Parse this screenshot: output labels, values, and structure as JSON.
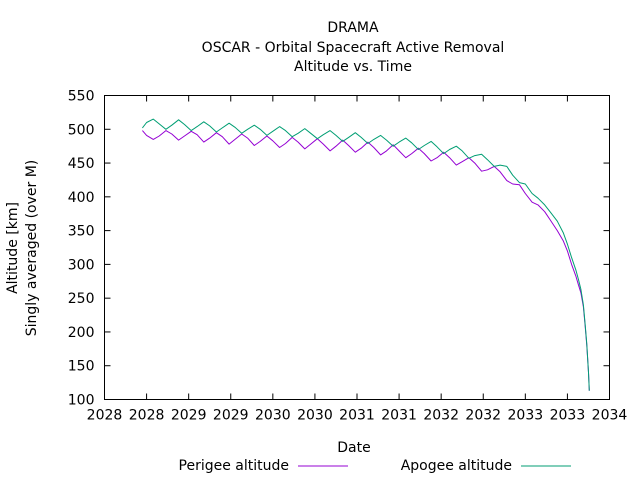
{
  "chart_data": {
    "type": "line",
    "title": "DRAMA",
    "subtitle_lines": [
      "OSCAR - Orbital Spacecraft Active Removal",
      "Altitude vs. Time"
    ],
    "xlabel": "Date",
    "ylabel_lines": [
      "Altitude [km]",
      "Singly averaged (over M)"
    ],
    "xlim": [
      2028.0,
      2034.0
    ],
    "ylim": [
      100,
      550
    ],
    "x_ticks": [
      {
        "v": 2028.0,
        "label": "2028"
      },
      {
        "v": 2028.5,
        "label": "2028"
      },
      {
        "v": 2029.0,
        "label": "2029"
      },
      {
        "v": 2029.5,
        "label": "2029"
      },
      {
        "v": 2030.0,
        "label": "2030"
      },
      {
        "v": 2030.5,
        "label": "2030"
      },
      {
        "v": 2031.0,
        "label": "2031"
      },
      {
        "v": 2031.5,
        "label": "2031"
      },
      {
        "v": 2032.0,
        "label": "2032"
      },
      {
        "v": 2032.5,
        "label": "2032"
      },
      {
        "v": 2033.0,
        "label": "2033"
      },
      {
        "v": 2033.5,
        "label": "2033"
      },
      {
        "v": 2034.0,
        "label": "2034"
      }
    ],
    "y_ticks": [
      {
        "v": 550,
        "label": "550"
      },
      {
        "v": 500,
        "label": "500"
      },
      {
        "v": 450,
        "label": "450"
      },
      {
        "v": 400,
        "label": "400"
      },
      {
        "v": 350,
        "label": "350"
      },
      {
        "v": 300,
        "label": "300"
      },
      {
        "v": 250,
        "label": "250"
      },
      {
        "v": 200,
        "label": "200"
      },
      {
        "v": 150,
        "label": "150"
      },
      {
        "v": 100,
        "label": "100"
      }
    ],
    "grid": false,
    "legend_position": "bottom",
    "series": [
      {
        "name": "Perigee altitude",
        "color": "#9400d3",
        "x": [
          2028.45,
          2028.5,
          2028.58,
          2028.65,
          2028.73,
          2028.8,
          2028.88,
          2028.95,
          2029.03,
          2029.1,
          2029.18,
          2029.25,
          2029.33,
          2029.4,
          2029.48,
          2029.55,
          2029.63,
          2029.7,
          2029.78,
          2029.85,
          2029.93,
          2030.0,
          2030.08,
          2030.15,
          2030.23,
          2030.3,
          2030.38,
          2030.45,
          2030.53,
          2030.6,
          2030.68,
          2030.75,
          2030.83,
          2030.9,
          2030.98,
          2031.05,
          2031.13,
          2031.2,
          2031.28,
          2031.35,
          2031.43,
          2031.5,
          2031.58,
          2031.65,
          2031.73,
          2031.8,
          2031.88,
          2031.95,
          2032.03,
          2032.1,
          2032.18,
          2032.25,
          2032.33,
          2032.4,
          2032.48,
          2032.55,
          2032.63,
          2032.7,
          2032.78,
          2032.85,
          2032.93,
          2033.0,
          2033.08,
          2033.15,
          2033.23,
          2033.3,
          2033.38,
          2033.45,
          2033.5,
          2033.55,
          2033.6,
          2033.63,
          2033.66,
          2033.69,
          2033.71,
          2033.73,
          2033.75,
          2033.76
        ],
        "y": [
          498,
          491,
          485,
          490,
          498,
          493,
          484,
          490,
          497,
          492,
          481,
          487,
          495,
          489,
          478,
          485,
          493,
          487,
          476,
          482,
          490,
          483,
          473,
          479,
          488,
          481,
          471,
          478,
          486,
          478,
          468,
          475,
          484,
          476,
          466,
          472,
          481,
          473,
          462,
          468,
          477,
          468,
          458,
          464,
          472,
          464,
          453,
          458,
          466,
          458,
          447,
          452,
          458,
          450,
          438,
          440,
          445,
          437,
          424,
          419,
          418,
          405,
          392,
          388,
          378,
          365,
          350,
          335,
          320,
          300,
          283,
          270,
          258,
          237,
          210,
          180,
          140,
          113
        ]
      },
      {
        "name": "Apogee altitude",
        "color": "#009e73",
        "x": [
          2028.45,
          2028.5,
          2028.58,
          2028.65,
          2028.73,
          2028.8,
          2028.88,
          2028.95,
          2029.03,
          2029.1,
          2029.18,
          2029.25,
          2029.33,
          2029.4,
          2029.48,
          2029.55,
          2029.63,
          2029.7,
          2029.78,
          2029.85,
          2029.93,
          2030.0,
          2030.08,
          2030.15,
          2030.23,
          2030.3,
          2030.38,
          2030.45,
          2030.53,
          2030.6,
          2030.68,
          2030.75,
          2030.83,
          2030.9,
          2030.98,
          2031.05,
          2031.13,
          2031.2,
          2031.28,
          2031.35,
          2031.43,
          2031.5,
          2031.58,
          2031.65,
          2031.73,
          2031.8,
          2031.88,
          2031.95,
          2032.03,
          2032.1,
          2032.18,
          2032.25,
          2032.33,
          2032.4,
          2032.48,
          2032.55,
          2032.63,
          2032.7,
          2032.78,
          2032.85,
          2032.93,
          2033.0,
          2033.08,
          2033.15,
          2033.23,
          2033.3,
          2033.38,
          2033.45,
          2033.5,
          2033.55,
          2033.6,
          2033.63,
          2033.66,
          2033.69,
          2033.71,
          2033.73,
          2033.75,
          2033.76
        ],
        "y": [
          502,
          510,
          515,
          508,
          500,
          506,
          514,
          507,
          498,
          504,
          511,
          505,
          496,
          502,
          509,
          503,
          494,
          500,
          506,
          500,
          491,
          497,
          504,
          498,
          489,
          494,
          501,
          494,
          486,
          492,
          498,
          491,
          482,
          488,
          495,
          488,
          479,
          485,
          491,
          484,
          475,
          481,
          487,
          480,
          470,
          476,
          482,
          474,
          464,
          470,
          475,
          468,
          457,
          461,
          463,
          455,
          445,
          447,
          445,
          432,
          421,
          419,
          405,
          398,
          388,
          377,
          364,
          347,
          330,
          310,
          292,
          278,
          263,
          240,
          212,
          182,
          140,
          113
        ]
      }
    ]
  }
}
